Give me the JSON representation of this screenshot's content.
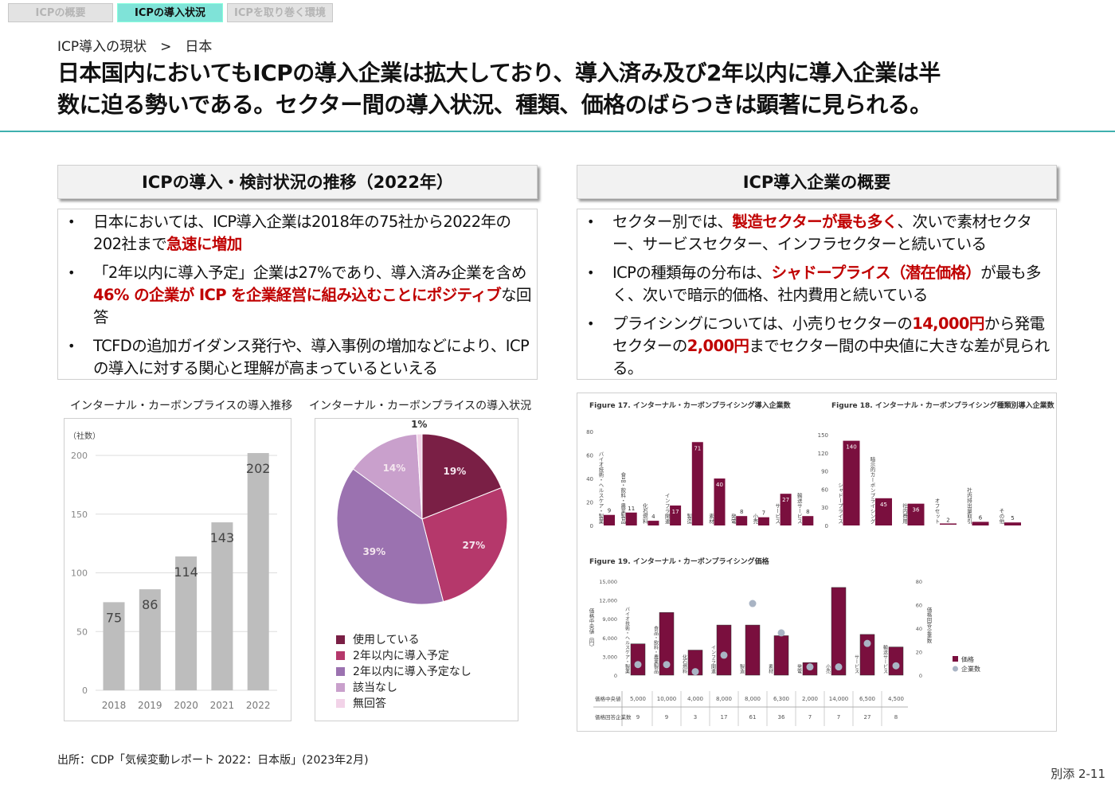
{
  "tabs": [
    {
      "label": "ICPの概要",
      "active": false
    },
    {
      "label": "ICPの導入状況",
      "active": true
    },
    {
      "label": "ICPを取り巻く環境",
      "active": false
    }
  ],
  "breadcrumb": "ICP導入の現状　>　日本",
  "title": [
    "日本国内においてもICPの導入企業は拡大しており、導入済み及び2年以内に導入企業は半",
    "数に迫る勢いである。セクター間の導入状況、種類、価格のばらつきは顕著に見られる。"
  ],
  "left": {
    "header": "ICPの導入・検討状況の推移（2022年）",
    "bullets": [
      [
        {
          "t": "日本においては、ICP導入企業は2018年の75社から2022年の202社まで"
        },
        {
          "t": "急速に増加",
          "hl": true
        }
      ],
      [
        {
          "t": "「2年以内に導入予定」企業は27%であり、導入済み企業を含め "
        },
        {
          "t": "46% の企業が ICP を企業経営に組み込むことにポジティブ",
          "hl": true
        },
        {
          "t": "な回答"
        }
      ],
      [
        {
          "t": "TCFDの追加ガイダンス発行や、導入事例の増加などにより、ICP の導入に対する関心と理解が高まっているといえる"
        }
      ]
    ]
  },
  "right": {
    "header": "ICP導入企業の概要",
    "bullets": [
      [
        {
          "t": "セクター別では、"
        },
        {
          "t": "製造セクターが最も多く",
          "hl": true
        },
        {
          "t": "、次いで素材セクター、サービスセクター、インフラセクターと続いている"
        }
      ],
      [
        {
          "t": "ICPの種類毎の分布は、"
        },
        {
          "t": "シャドープライス（潜在価格）",
          "hl": true
        },
        {
          "t": "が最も多く、次いで暗示的価格、社内費用と続いている"
        }
      ],
      [
        {
          "t": "プライシングについては、小売りセクターの"
        },
        {
          "t": "14,000円",
          "hl": true
        },
        {
          "t": "から発電セクターの"
        },
        {
          "t": "2,000円",
          "hl": true
        },
        {
          "t": "までセクター間の中央値に大きな差が見られる。"
        }
      ]
    ]
  },
  "chart_data": [
    {
      "id": "trend",
      "type": "bar",
      "title": "インターナル・カーボンプライスの導入推移",
      "ylabel": "（社数）",
      "categories": [
        "2018",
        "2019",
        "2020",
        "2021",
        "2022"
      ],
      "values": [
        75,
        86,
        114,
        143,
        202
      ],
      "ylim": [
        0,
        200
      ],
      "yticks": [
        0,
        50,
        100,
        150,
        200
      ],
      "grid": true,
      "color": "#bdbdbd"
    },
    {
      "id": "status",
      "type": "pie",
      "title": "インターナル・カーボンプライスの導入状況",
      "legend": "bottom-left",
      "slices": [
        {
          "name": "使用している",
          "value": 19,
          "label": "19%",
          "color": "#7a1f45"
        },
        {
          "name": "2年以内に導入予定",
          "value": 27,
          "label": "27%",
          "color": "#b5386b"
        },
        {
          "name": "2年以内に導入予定なし",
          "value": 39,
          "label": "39%",
          "color": "#9b72b0"
        },
        {
          "name": "該当なし",
          "value": 14,
          "label": "14%",
          "color": "#c9a0cc"
        },
        {
          "name": "無回答",
          "value": 1,
          "label": "1%",
          "color": "#f2d3e8"
        }
      ]
    },
    {
      "id": "fig17",
      "type": "bar",
      "title": "Figure 17. インターナル・カーボンプライシング導入企業数",
      "categories": [
        "バイオ技術・ヘルスケア・製薬",
        "食品・飲料・農業製品",
        "化石燃料",
        "インフラ関連",
        "製造",
        "素材",
        "発電",
        "小売",
        "サービス",
        "輸送サービス"
      ],
      "values": [
        9,
        11,
        4,
        17,
        71,
        40,
        8,
        7,
        27,
        8
      ],
      "ylim": [
        0,
        80
      ],
      "yticks": [
        0,
        20,
        40,
        60,
        80
      ],
      "color": "#7a0f3e"
    },
    {
      "id": "fig18",
      "type": "bar",
      "title": "Figure 18. インターナル・カーボンプライシング種類別導入企業数",
      "categories": [
        "シャドープライス",
        "暗示的カーボンプライシング",
        "社内費用",
        "オフセット",
        "社内排出量取引",
        "その他"
      ],
      "values": [
        140,
        45,
        36,
        2,
        6,
        5
      ],
      "ylim": [
        0,
        150
      ],
      "yticks": [
        0,
        30,
        60,
        90,
        120,
        150
      ],
      "color": "#7a0f3e"
    },
    {
      "id": "fig19",
      "type": "bar+scatter",
      "title": "Figure 19. インターナル・カーボンプライシング価格",
      "ylabel": "価格中央値（円）",
      "y2label": "価格回答企業数",
      "categories": [
        "バイオ技術・ヘルスケア・製薬",
        "食品・飲料・農業製品",
        "化石燃料",
        "インフラ関連",
        "製造",
        "素材",
        "発電",
        "小売",
        "サービス",
        "輸送サービス"
      ],
      "series": [
        {
          "name": "価格",
          "values": [
            5000,
            10000,
            4000,
            8000,
            8000,
            6300,
            2000,
            14000,
            6500,
            4500
          ],
          "color": "#7a0f3e"
        },
        {
          "name": "企業数",
          "values": [
            9,
            9,
            3,
            17,
            61,
            36,
            7,
            7,
            27,
            8
          ],
          "color": "#a9b4c4"
        }
      ],
      "ylim": [
        0,
        15000
      ],
      "yticks": [
        "0",
        "3,000",
        "6,000",
        "9,000",
        "12,000",
        "15,000"
      ],
      "y2lim": [
        0,
        80
      ],
      "y2ticks": [
        0,
        20,
        40,
        60,
        80
      ],
      "table": {
        "rows": [
          {
            "label": "価格中央値",
            "values": [
              "5,000",
              "10,000",
              "4,000",
              "8,000",
              "8,000",
              "6,300",
              "2,000",
              "14,000",
              "6,500",
              "4,500"
            ]
          },
          {
            "label": "価格回答企業数",
            "values": [
              "9",
              "9",
              "3",
              "17",
              "61",
              "36",
              "7",
              "7",
              "27",
              "8"
            ]
          }
        ]
      }
    }
  ],
  "source": "出所：CDP「気候変動レポート 2022：日本版」(2023年2月)",
  "page_number": "別添 2-11"
}
